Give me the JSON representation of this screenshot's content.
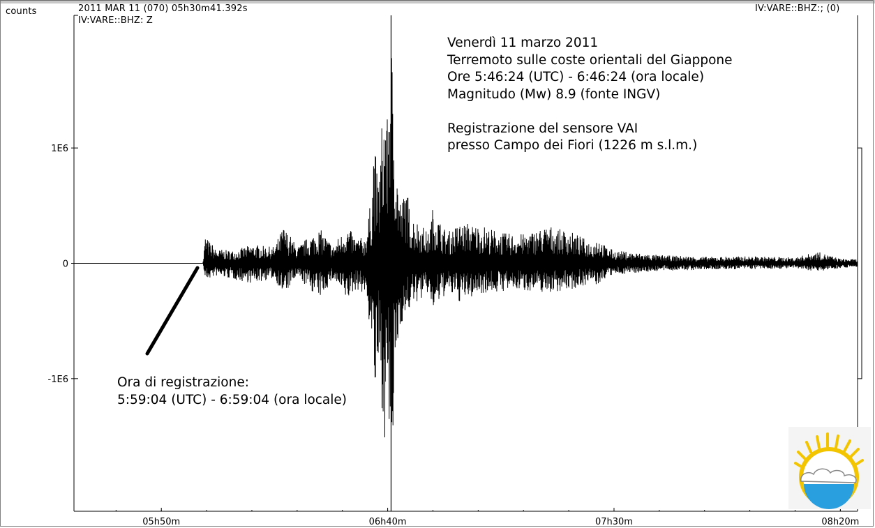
{
  "header": {
    "units_label": "counts",
    "start_time": "2011 MAR 11 (070)  05h30m41.392s",
    "channel_right": "IV:VARE::BHZ:; (0)",
    "channel_trace": "IV:VARE::BHZ: Z"
  },
  "annotation_event": {
    "lines": [
      "Venerdì 11 marzo 2011",
      "Terremoto sulle coste orientali del Giappone",
      "Ore 5:46:24 (UTC) - 6:46:24 (ora locale)",
      "Magnitudo (Mw) 8.9 (fonte INGV)",
      "",
      "Registrazione del sensore VAI",
      "presso Campo dei Fiori  (1226 m s.l.m.)"
    ]
  },
  "annotation_arrival": {
    "lines": [
      "Ora di registrazione:",
      "5:59:04 (UTC) - 6:59:04 (ora locale)"
    ]
  },
  "chart_data": {
    "type": "line",
    "title": "",
    "xlabel": "",
    "ylabel": "counts",
    "x_unit": "minutes after 05h30m UTC",
    "x_ticks": [
      {
        "value": 20,
        "label": "05h50m"
      },
      {
        "value": 70,
        "label": "06h40m"
      },
      {
        "value": 120,
        "label": "07h30m"
      },
      {
        "value": 170,
        "label": "08h20m"
      }
    ],
    "y_ticks": [
      {
        "value": 1000000,
        "label": "1E6"
      },
      {
        "value": 0,
        "label": "0"
      },
      {
        "value": -1000000,
        "label": "-1E6"
      }
    ],
    "xlim": [
      0.7,
      173.8
    ],
    "ylim": [
      -2150000,
      2150000
    ],
    "series": [
      {
        "color": "#000000",
        "envelope": {
          "x": [
            0.7,
            28.4,
            29.2,
            29.7,
            32,
            36,
            40,
            45,
            47,
            50,
            55,
            58,
            61,
            63,
            65,
            66.5,
            67,
            67.6,
            68,
            68.5,
            69,
            69.5,
            70,
            70.5,
            71,
            71.5,
            72,
            73,
            74,
            75,
            77,
            79,
            80,
            83,
            86,
            90,
            95,
            100,
            105,
            110,
            115,
            116.5,
            118,
            120,
            125,
            130,
            140,
            150,
            160,
            165,
            170,
            173.8
          ],
          "upper": [
            0,
            0,
            0,
            240000,
            120000,
            110000,
            160000,
            140000,
            320000,
            140000,
            300000,
            150000,
            320000,
            220000,
            220000,
            590000,
            1150000,
            780000,
            730000,
            1050000,
            1350000,
            1450000,
            1200000,
            2200000,
            1800000,
            1360000,
            850000,
            500000,
            700000,
            430000,
            350000,
            250000,
            480000,
            260000,
            350000,
            330000,
            260000,
            250000,
            320000,
            280000,
            180000,
            230000,
            150000,
            110000,
            90000,
            70000,
            55000,
            60000,
            50000,
            100000,
            40000,
            35000
          ],
          "lower": [
            0,
            0,
            0,
            -150000,
            -110000,
            -140000,
            -170000,
            -130000,
            -280000,
            -120000,
            -300000,
            -140000,
            -330000,
            -220000,
            -260000,
            -650000,
            -1050000,
            -1330000,
            -900000,
            -1100000,
            -1400000,
            -1550000,
            -1300000,
            -1700000,
            -1750000,
            -1300000,
            -800000,
            -500000,
            -500000,
            -380000,
            -310000,
            -260000,
            -420000,
            -250000,
            -330000,
            -260000,
            -240000,
            -230000,
            -250000,
            -230000,
            -170000,
            -200000,
            -130000,
            -100000,
            -80000,
            -65000,
            -55000,
            -50000,
            -45000,
            -70000,
            -40000,
            -30000
          ]
        }
      }
    ]
  }
}
